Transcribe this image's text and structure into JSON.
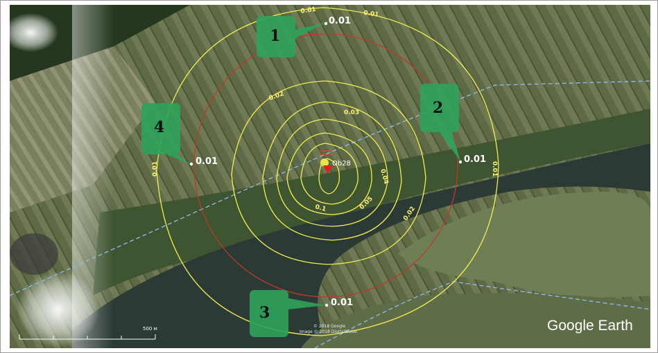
{
  "map": {
    "source_label": "Ob28",
    "brand": "Google Earth",
    "credit_line1": "© 2018 Google",
    "credit_line2": "Image © 2018 DigitalGlobe",
    "scale_label": "500 м",
    "colors": {
      "field_green": "#55623f",
      "field_light": "#8a8d6a",
      "river": "#2c3a34",
      "isoline": "#f2ee55",
      "red_circle": "#c0392b",
      "callout": "#2fa25a",
      "border_line": "#7fa9d6"
    }
  },
  "callouts": [
    {
      "number": "1",
      "point_label": "0.01"
    },
    {
      "number": "2",
      "point_label": "0.01"
    },
    {
      "number": "3",
      "point_label": "0.01"
    },
    {
      "number": "4",
      "point_label": "0.01"
    }
  ],
  "isolines": [
    {
      "label": "0.01"
    },
    {
      "label": "0.01"
    },
    {
      "label": "0.01"
    },
    {
      "label": "0.01"
    },
    {
      "label": "0.02"
    },
    {
      "label": "0.02"
    },
    {
      "label": "0.03"
    },
    {
      "label": "0.04"
    },
    {
      "label": "0.05"
    },
    {
      "label": "0.1"
    }
  ]
}
